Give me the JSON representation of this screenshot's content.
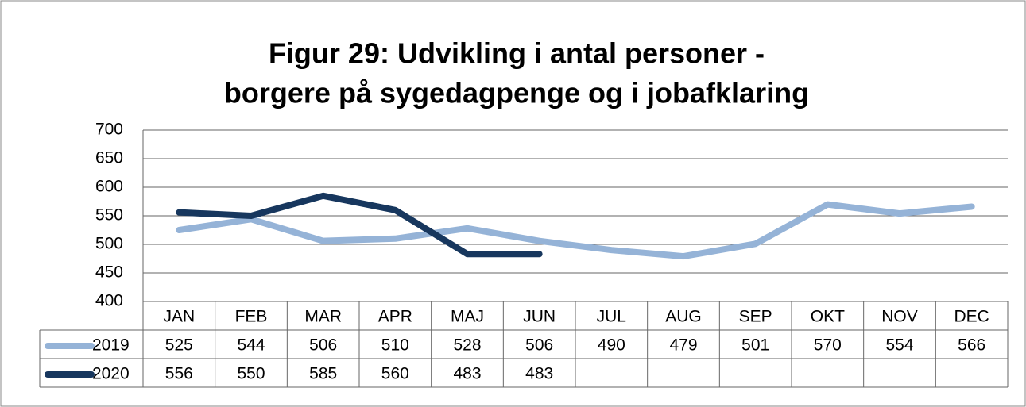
{
  "chart_data": {
    "type": "line",
    "title": [
      "Figur 29: Udvikling i antal personer -",
      "borgere på sygedagpenge og i jobafklaring"
    ],
    "categories": [
      "JAN",
      "FEB",
      "MAR",
      "APR",
      "MAJ",
      "JUN",
      "JUL",
      "AUG",
      "SEP",
      "OKT",
      "NOV",
      "DEC"
    ],
    "series": [
      {
        "name": "2019",
        "color": "#95b3d7",
        "values": [
          525,
          544,
          506,
          510,
          528,
          506,
          490,
          479,
          501,
          570,
          554,
          566
        ]
      },
      {
        "name": "2020",
        "color": "#17375e",
        "values": [
          556,
          550,
          585,
          560,
          483,
          483,
          null,
          null,
          null,
          null,
          null,
          null
        ]
      }
    ],
    "ylim": [
      400,
      700
    ],
    "yticks": [
      400,
      450,
      500,
      550,
      600,
      650,
      700
    ],
    "grid": true
  }
}
